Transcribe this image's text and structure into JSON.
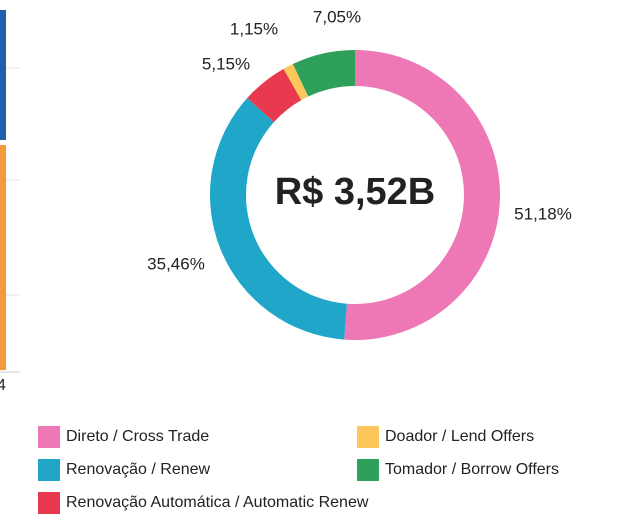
{
  "chart_data": {
    "type": "donut",
    "center_label": "R$ 3,52B",
    "categories": [
      "Direto / Cross Trade",
      "Renovação / Renew",
      "Renovação Automática / Automatic Renew",
      "Doador / Lend Offers",
      "Tomador / Borrow Offers"
    ],
    "values": [
      51.18,
      35.46,
      5.15,
      1.15,
      7.05
    ],
    "value_labels": [
      "51,18%",
      "35,46%",
      "5,15%",
      "1,15%",
      "7,05%"
    ],
    "colors": [
      "#ee78b6",
      "#1fa6c9",
      "#e8394f",
      "#fdc75b",
      "#2fa05b"
    ]
  },
  "cropped_chart": {
    "tick_label": "4"
  }
}
